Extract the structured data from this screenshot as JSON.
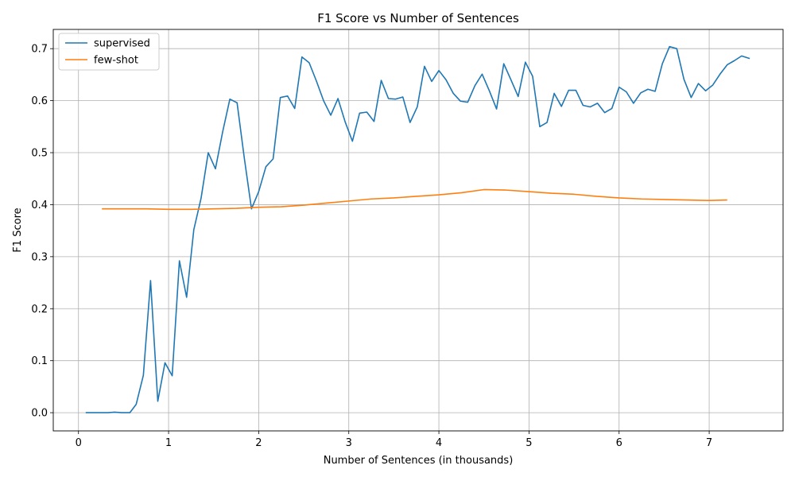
{
  "chart_data": {
    "type": "line",
    "title": "F1 Score vs Number of Sentences",
    "xlabel": "Number of Sentences (in thousands)",
    "ylabel": "F1 Score",
    "xlim": [
      -0.28,
      7.82
    ],
    "ylim": [
      -0.035,
      0.737
    ],
    "xticks": [
      0,
      1,
      2,
      3,
      4,
      5,
      6,
      7
    ],
    "yticks": [
      0.0,
      0.1,
      0.2,
      0.3,
      0.4,
      0.5,
      0.6,
      0.7
    ],
    "xtick_labels": [
      "0",
      "1",
      "2",
      "3",
      "4",
      "5",
      "6",
      "7"
    ],
    "ytick_labels": [
      "0.0",
      "0.1",
      "0.2",
      "0.3",
      "0.4",
      "0.5",
      "0.6",
      "0.7"
    ],
    "grid": true,
    "legend_position": "top-left",
    "series": [
      {
        "name": "supervised",
        "color": "#1f77b4",
        "x": [
          0.08,
          0.17,
          0.25,
          0.33,
          0.4,
          0.48,
          0.57,
          0.64,
          0.72,
          0.8,
          0.88,
          0.96,
          1.04,
          1.12,
          1.2,
          1.28,
          1.36,
          1.44,
          1.52,
          1.6,
          1.68,
          1.76,
          1.84,
          1.92,
          2.0,
          2.08,
          2.16,
          2.24,
          2.32,
          2.4,
          2.48,
          2.56,
          2.64,
          2.72,
          2.8,
          2.88,
          2.96,
          3.04,
          3.12,
          3.2,
          3.28,
          3.36,
          3.44,
          3.52,
          3.6,
          3.68,
          3.76,
          3.84,
          3.92,
          4.0,
          4.08,
          4.16,
          4.24,
          4.32,
          4.4,
          4.48,
          4.56,
          4.64,
          4.72,
          4.8,
          4.88,
          4.96,
          5.04,
          5.12,
          5.2,
          5.28,
          5.36,
          5.44,
          5.52,
          5.6,
          5.68,
          5.76,
          5.84,
          5.92,
          6.0,
          6.08,
          6.16,
          6.24,
          6.32,
          6.4,
          6.48,
          6.56,
          6.64,
          6.72,
          6.8,
          6.88,
          6.96,
          7.04,
          7.12,
          7.2,
          7.28,
          7.36,
          7.45
        ],
        "values": [
          0.0,
          0.0,
          0.0,
          0.0,
          0.001,
          0.0,
          0.0,
          0.016,
          0.072,
          0.254,
          0.022,
          0.096,
          0.071,
          0.292,
          0.222,
          0.352,
          0.412,
          0.5,
          0.469,
          0.54,
          0.603,
          0.596,
          0.49,
          0.392,
          0.425,
          0.473,
          0.488,
          0.606,
          0.609,
          0.585,
          0.684,
          0.673,
          0.638,
          0.6,
          0.572,
          0.604,
          0.559,
          0.522,
          0.576,
          0.578,
          0.56,
          0.639,
          0.604,
          0.603,
          0.607,
          0.558,
          0.588,
          0.666,
          0.637,
          0.658,
          0.64,
          0.614,
          0.599,
          0.597,
          0.629,
          0.651,
          0.619,
          0.584,
          0.671,
          0.64,
          0.608,
          0.674,
          0.647,
          0.55,
          0.558,
          0.614,
          0.589,
          0.62,
          0.62,
          0.591,
          0.588,
          0.595,
          0.577,
          0.585,
          0.626,
          0.617,
          0.595,
          0.615,
          0.622,
          0.618,
          0.671,
          0.704,
          0.7,
          0.641,
          0.606,
          0.633,
          0.619,
          0.63,
          0.651,
          0.669,
          0.677,
          0.686,
          0.681
        ]
      },
      {
        "name": "few-shot",
        "color": "#ff7f0e",
        "x": [
          0.26,
          0.5,
          0.75,
          1.0,
          1.25,
          1.5,
          1.75,
          2.0,
          2.25,
          2.5,
          2.75,
          3.0,
          3.25,
          3.5,
          3.75,
          4.0,
          4.25,
          4.5,
          4.75,
          5.0,
          5.25,
          5.5,
          5.75,
          6.0,
          6.25,
          6.5,
          6.75,
          7.0,
          7.2
        ],
        "values": [
          0.392,
          0.392,
          0.392,
          0.391,
          0.391,
          0.392,
          0.393,
          0.395,
          0.396,
          0.399,
          0.403,
          0.407,
          0.411,
          0.413,
          0.416,
          0.419,
          0.423,
          0.429,
          0.428,
          0.425,
          0.422,
          0.42,
          0.416,
          0.413,
          0.411,
          0.41,
          0.409,
          0.408,
          0.409
        ]
      }
    ]
  }
}
